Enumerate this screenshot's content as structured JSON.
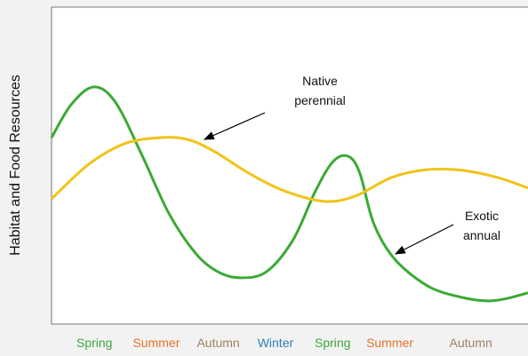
{
  "chart_data": {
    "type": "line",
    "ylabel": "Habitat and Food Resources",
    "xlim": [
      0,
      100
    ],
    "ylim": [
      0,
      100
    ],
    "xticks": [
      {
        "value": 9,
        "label": "Spring"
      },
      {
        "value": 22,
        "label": "Summer"
      },
      {
        "value": 35,
        "label": "Autumn"
      },
      {
        "value": 47,
        "label": "Winter"
      },
      {
        "value": 59,
        "label": "Spring"
      },
      {
        "value": 71,
        "label": "Summer"
      },
      {
        "value": 88,
        "label": "Autumn"
      }
    ],
    "xtick_colors": [
      "#3aa83a",
      "#e5732a",
      "#a08060",
      "#2c7fb8",
      "#3aa83a",
      "#e5732a",
      "#a08060"
    ],
    "series": [
      {
        "name": "Exotic annual",
        "color": "#3aaa35",
        "x": [
          0,
          4.1,
          8.8,
          13.4,
          19.0,
          24.6,
          30.2,
          34.9,
          39.6,
          45.1,
          50.7,
          55.4,
          59.1,
          62.3,
          64.7,
          67.5,
          71.3,
          76.9,
          82.5,
          91.8,
          100
        ],
        "values": [
          58.8,
          69.2,
          74.8,
          70.0,
          53.2,
          35.0,
          22.4,
          16.5,
          14.6,
          16.5,
          26.6,
          42.0,
          51.3,
          52.9,
          47.6,
          32.2,
          21.8,
          14.0,
          9.8,
          7.3,
          9.8
        ]
      },
      {
        "name": "Native perennial",
        "color": "#f2c318",
        "x": [
          0,
          7.8,
          15.3,
          22.8,
          28.4,
          34.0,
          41.4,
          48.9,
          57.3,
          63.8,
          71.3,
          78.7,
          86.2,
          93.7,
          100
        ],
        "values": [
          39.5,
          50.4,
          56.9,
          58.8,
          58.3,
          54.6,
          47.6,
          42.0,
          38.7,
          40.4,
          46.2,
          48.7,
          48.5,
          46.2,
          42.9
        ]
      }
    ],
    "annotations": [
      {
        "lines": [
          "Native",
          "perennial"
        ]
      },
      {
        "lines": [
          "Exotic",
          "annual"
        ]
      }
    ]
  }
}
